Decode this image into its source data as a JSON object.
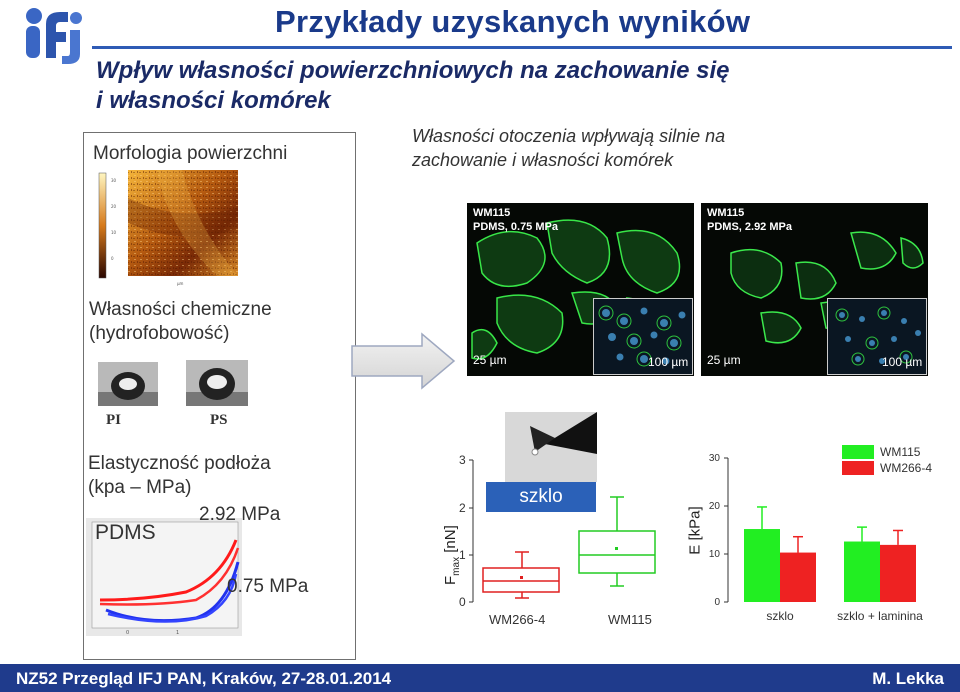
{
  "header": {
    "title": "Przykłady uzyskanych wyników",
    "subtitle_line1": "Wpływ własności powierzchniowych na zachowanie się",
    "subtitle_line2": "i własności komórek"
  },
  "left_panel": {
    "morfologia": "Morfologia powierzchni",
    "chemiczne_line1": "Własności chemiczne",
    "chemiczne_line2": "(hydrofobowość)",
    "drop_pi": "PI",
    "drop_ps": "PS",
    "elastycznosc_line1": "Elastyczność podłoża",
    "elastycznosc_line2": "(kpa – MPa)",
    "pdms": "PDMS",
    "value_high": "2.92 MPa",
    "value_low": "0.75 MPa"
  },
  "right_text": {
    "line1": "Własności otoczenia wpływają silnie na",
    "line2": "zachowanie i własności komórek"
  },
  "micrographs": [
    {
      "caption": "WM115\nPDMS, 0.75 MPa",
      "scale_main": "25 µm",
      "scale_inset": "100 µm"
    },
    {
      "caption": "WM115\nPDMS, 2.92 MPa",
      "scale_main": "25 µm",
      "scale_inset": "100 µm"
    }
  ],
  "boxplot": {
    "ylabel_main": "F",
    "ylabel_sub": "max",
    "ylabel_unit": " [nN]",
    "label_box": "szklo",
    "yticks": [
      "3",
      "2",
      "1",
      "0"
    ],
    "xcats": [
      "WM266-4",
      "WM115"
    ]
  },
  "chart_data": {
    "type": "bar",
    "categories": [
      "szklo",
      "szklo + laminina"
    ],
    "series": [
      {
        "name": "WM115",
        "color": "#22ee22",
        "values": [
          15.2,
          12.6
        ],
        "errors": [
          4.6,
          3.0
        ]
      },
      {
        "name": "WM266-4",
        "color": "#ee2222",
        "values": [
          10.3,
          11.9
        ],
        "errors": [
          3.3,
          3.0
        ]
      }
    ],
    "ylabel": "E [kPa]",
    "ylim": [
      0,
      30
    ],
    "yticks": [
      "30",
      "20",
      "10",
      "0"
    ],
    "legend": "top-right"
  },
  "footer": {
    "left": "NZ52 Przegląd IFJ PAN, Kraków, 27-28.01.2014",
    "right": "M. Lekka"
  },
  "colors": {
    "title": "#1a3a8a",
    "footer": "#1f3b8c",
    "accent": "#2b61b8"
  }
}
